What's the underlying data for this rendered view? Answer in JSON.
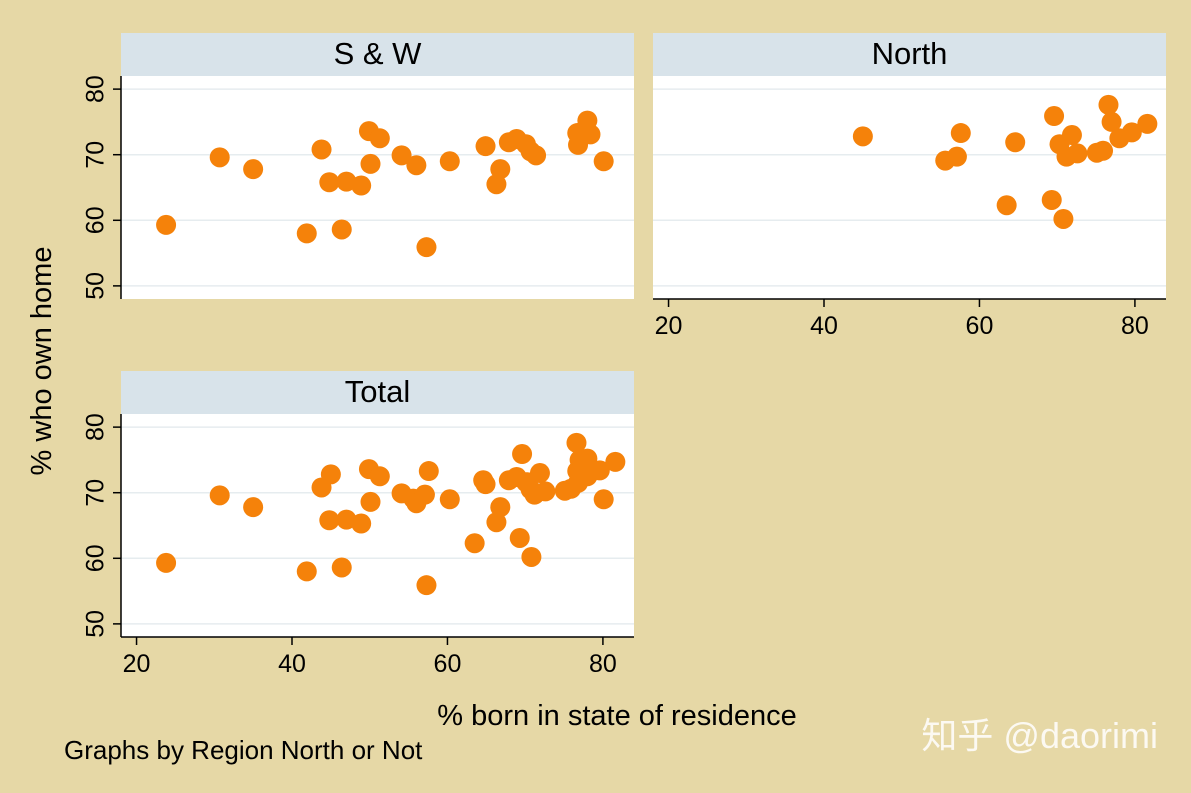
{
  "chart_data": {
    "type": "scatter",
    "xlabel": "% born in state of residence",
    "ylabel": "% who own home",
    "note": "Graphs by Region North or Not",
    "watermark": "知乎 @daorimi",
    "xlim": [
      18,
      84
    ],
    "ylim": [
      48,
      82
    ],
    "xticks": [
      20,
      40,
      60,
      80
    ],
    "yticks": [
      50,
      60,
      70,
      80
    ],
    "grid": true,
    "colors": {
      "background": "#e6d8a6",
      "plot_area": "#ffffff",
      "strip": "#d8e3ea",
      "marker": "#f5820a",
      "gridline": "#e6ecef",
      "axis": "#000000"
    },
    "panels": [
      {
        "title": "S & W",
        "show_x_axis": false,
        "show_y_axis": true,
        "points": [
          [
            23.8,
            59.3
          ],
          [
            30.7,
            69.6
          ],
          [
            35,
            67.8
          ],
          [
            41.9,
            58
          ],
          [
            43.8,
            70.8
          ],
          [
            44.8,
            65.8
          ],
          [
            46.4,
            58.6
          ],
          [
            47,
            65.9
          ],
          [
            48.9,
            65.3
          ],
          [
            49.9,
            73.6
          ],
          [
            50.1,
            68.6
          ],
          [
            51.3,
            72.5
          ],
          [
            54.1,
            69.9
          ],
          [
            56,
            68.4
          ],
          [
            57.3,
            55.9
          ],
          [
            60.3,
            69
          ],
          [
            64.9,
            71.3
          ],
          [
            66.3,
            65.5
          ],
          [
            66.8,
            67.8
          ],
          [
            67.9,
            71.9
          ],
          [
            68.9,
            72.4
          ],
          [
            70.1,
            71.6
          ],
          [
            70.7,
            70.5
          ],
          [
            71.4,
            69.9
          ],
          [
            76.7,
            73.3
          ],
          [
            76.8,
            71.5
          ],
          [
            78,
            75.2
          ],
          [
            78.4,
            73.1
          ],
          [
            80.1,
            69
          ]
        ]
      },
      {
        "title": "North",
        "show_x_axis": true,
        "show_y_axis": false,
        "points": [
          [
            45,
            72.8
          ],
          [
            55.6,
            69.1
          ],
          [
            57.1,
            69.7
          ],
          [
            57.6,
            73.3
          ],
          [
            63.5,
            62.3
          ],
          [
            64.6,
            71.9
          ],
          [
            69.3,
            63.1
          ],
          [
            69.6,
            75.9
          ],
          [
            70.3,
            71.6
          ],
          [
            70.8,
            60.2
          ],
          [
            71.2,
            69.7
          ],
          [
            71.9,
            73
          ],
          [
            72.6,
            70.2
          ],
          [
            75.1,
            70.3
          ],
          [
            75.9,
            70.6
          ],
          [
            76.6,
            77.6
          ],
          [
            77,
            75
          ],
          [
            78,
            72.5
          ],
          [
            79.6,
            73.4
          ],
          [
            81.6,
            74.7
          ]
        ]
      },
      {
        "title": "Total",
        "show_x_axis": true,
        "show_y_axis": true,
        "points": [
          [
            23.8,
            59.3
          ],
          [
            30.7,
            69.6
          ],
          [
            35,
            67.8
          ],
          [
            41.9,
            58
          ],
          [
            43.8,
            70.8
          ],
          [
            44.8,
            65.8
          ],
          [
            45,
            72.8
          ],
          [
            46.4,
            58.6
          ],
          [
            47,
            65.9
          ],
          [
            48.9,
            65.3
          ],
          [
            49.9,
            73.6
          ],
          [
            50.1,
            68.6
          ],
          [
            51.3,
            72.5
          ],
          [
            54.1,
            69.9
          ],
          [
            55.6,
            69.1
          ],
          [
            56,
            68.4
          ],
          [
            57.1,
            69.7
          ],
          [
            57.3,
            55.9
          ],
          [
            57.6,
            73.3
          ],
          [
            60.3,
            69
          ],
          [
            63.5,
            62.3
          ],
          [
            64.6,
            71.9
          ],
          [
            64.9,
            71.3
          ],
          [
            66.3,
            65.5
          ],
          [
            66.8,
            67.8
          ],
          [
            67.9,
            71.9
          ],
          [
            68.9,
            72.4
          ],
          [
            69.3,
            63.1
          ],
          [
            69.6,
            75.9
          ],
          [
            70.1,
            71.6
          ],
          [
            70.3,
            71.6
          ],
          [
            70.7,
            70.5
          ],
          [
            70.8,
            60.2
          ],
          [
            71.2,
            69.7
          ],
          [
            71.4,
            69.9
          ],
          [
            71.9,
            73
          ],
          [
            72.6,
            70.2
          ],
          [
            75.1,
            70.3
          ],
          [
            75.9,
            70.6
          ],
          [
            76.6,
            77.6
          ],
          [
            76.7,
            73.3
          ],
          [
            76.8,
            71.5
          ],
          [
            77,
            75
          ],
          [
            78,
            72.5
          ],
          [
            78,
            75.2
          ],
          [
            78.4,
            73.1
          ],
          [
            79.6,
            73.4
          ],
          [
            80.1,
            69
          ],
          [
            81.6,
            74.7
          ]
        ]
      }
    ]
  }
}
